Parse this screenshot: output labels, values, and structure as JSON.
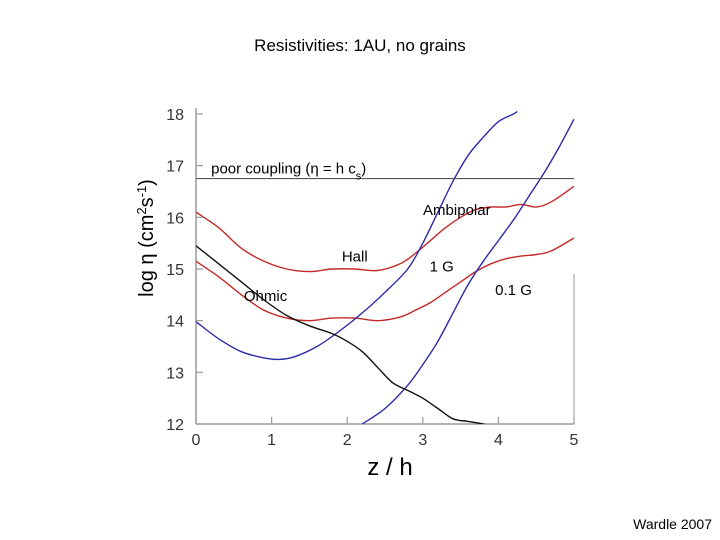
{
  "slide": {
    "title": "Resistivities: 1AU, no grains",
    "credit": "Wardle 2007"
  },
  "colors": {
    "blue": "#2b2ba8",
    "red": "#c42828",
    "black": "#111111",
    "frame": "#9a9a9a",
    "tick_text": "#333333"
  },
  "chart_data": {
    "type": "line",
    "title": "Resistivities: 1AU, no grains",
    "xlabel": "z / h",
    "ylabel_parts": {
      "main": "log η (cm",
      "sup1": "2",
      "mid": "s",
      "sup2": "-1",
      "end": ")"
    },
    "xlim": [
      0,
      5
    ],
    "ylim": [
      12,
      18
    ],
    "xticks": [
      0,
      1,
      2,
      3,
      4,
      5
    ],
    "yticks": [
      12,
      13,
      14,
      15,
      16,
      17,
      18
    ],
    "grid": false,
    "series": [
      {
        "color": "red",
        "x": [
          0,
          0.3,
          0.6,
          0.9,
          1.2,
          1.5,
          1.8,
          2.1,
          2.4,
          2.7,
          2.9,
          3.1,
          3.3,
          3.5,
          3.7,
          3.9,
          4.1,
          4.3,
          4.5,
          4.7,
          5.0
        ],
        "y": [
          16.1,
          15.8,
          15.4,
          15.15,
          15.0,
          14.95,
          15.0,
          15.0,
          14.97,
          15.1,
          15.3,
          15.55,
          15.8,
          16.0,
          16.15,
          16.2,
          16.2,
          16.25,
          16.2,
          16.3,
          16.6
        ]
      },
      {
        "color": "red",
        "x": [
          0,
          0.3,
          0.6,
          0.9,
          1.2,
          1.5,
          1.8,
          2.1,
          2.4,
          2.7,
          2.9,
          3.1,
          3.3,
          3.5,
          3.7,
          3.9,
          4.1,
          4.3,
          4.5,
          4.7,
          5.0
        ],
        "y": [
          15.15,
          14.85,
          14.5,
          14.2,
          14.05,
          14.0,
          14.05,
          14.05,
          14.0,
          14.07,
          14.2,
          14.35,
          14.55,
          14.75,
          14.95,
          15.1,
          15.2,
          15.25,
          15.28,
          15.35,
          15.6
        ]
      },
      {
        "color": "blue",
        "x": [
          0,
          0.3,
          0.6,
          0.9,
          1.1,
          1.3,
          1.6,
          1.9,
          2.2,
          2.5,
          2.8,
          3.0,
          3.2,
          3.4,
          3.6,
          3.8,
          4.0,
          4.2,
          4.25
        ],
        "y": [
          13.98,
          13.65,
          13.4,
          13.28,
          13.25,
          13.3,
          13.5,
          13.8,
          14.15,
          14.55,
          15.0,
          15.5,
          16.1,
          16.7,
          17.2,
          17.55,
          17.85,
          18.0,
          18.05
        ]
      },
      {
        "color": "blue",
        "x": [
          2.2,
          2.5,
          2.8,
          3.0,
          3.2,
          3.4,
          3.6,
          3.8,
          4.0,
          4.2,
          4.4,
          4.6,
          4.8,
          5.0
        ],
        "y": [
          12.0,
          12.3,
          12.75,
          13.15,
          13.6,
          14.15,
          14.7,
          15.15,
          15.55,
          15.95,
          16.4,
          16.85,
          17.35,
          17.9
        ]
      },
      {
        "color": "black",
        "x": [
          0,
          0.3,
          0.6,
          0.9,
          1.2,
          1.5,
          1.8,
          2.0,
          2.2,
          2.4,
          2.6,
          2.8,
          3.0,
          3.2,
          3.4,
          3.6,
          3.8,
          3.9
        ],
        "y": [
          15.45,
          15.1,
          14.75,
          14.4,
          14.1,
          13.9,
          13.75,
          13.6,
          13.4,
          13.1,
          12.8,
          12.65,
          12.5,
          12.3,
          12.1,
          12.05,
          12.0,
          11.95
        ]
      }
    ],
    "hline": {
      "y": 16.75
    },
    "annotations": [
      {
        "id": "poor-coupling",
        "main": "poor coupling (η  = h c",
        "sub": "s",
        "end": ")",
        "x": 0.2,
        "y": 16.85,
        "anchor": "start"
      },
      {
        "id": "ambipolar",
        "text": "Ambipolar",
        "x": 3.45,
        "y": 16.05,
        "anchor": "middle"
      },
      {
        "id": "hall",
        "text": "Hall",
        "x": 2.1,
        "y": 15.15,
        "anchor": "middle"
      },
      {
        "id": "ohmic",
        "text": "Ohmic",
        "x": 0.92,
        "y": 14.38,
        "anchor": "middle"
      },
      {
        "id": "one-g",
        "text": "1 G",
        "x": 3.25,
        "y": 14.95,
        "anchor": "middle"
      },
      {
        "id": "point-one-g",
        "text": "0.1 G",
        "x": 4.2,
        "y": 14.5,
        "anchor": "middle"
      }
    ]
  }
}
